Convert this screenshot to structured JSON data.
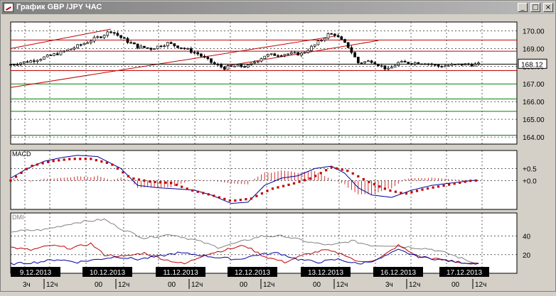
{
  "window": {
    "title": "График GBP /JPY  ЧАС",
    "buttons": {
      "minimize": "_",
      "maximize": "□",
      "close": "×"
    },
    "icon": "chart-icon"
  },
  "chart_data": [
    {
      "type": "candlestick",
      "pair": "GBP/JPY",
      "timeframe": "hourly",
      "ylim": [
        163.6,
        170.5
      ],
      "y_ticks": [
        "170.00",
        "169.00",
        "168.00",
        "167.00",
        "166.00",
        "165.00",
        "164.00"
      ],
      "current_price_label": "168.12",
      "close_path": [
        [
          0,
          168.1
        ],
        [
          6,
          168.3
        ],
        [
          12,
          168.6
        ],
        [
          17,
          168.9
        ],
        [
          22,
          169.3
        ],
        [
          27,
          169.7
        ],
        [
          30,
          170.0
        ],
        [
          34,
          169.5
        ],
        [
          38,
          169.1
        ],
        [
          42,
          169.0
        ],
        [
          47,
          169.3
        ],
        [
          52,
          169.0
        ],
        [
          56,
          168.7
        ],
        [
          61,
          168.1
        ],
        [
          64,
          167.9
        ],
        [
          67,
          168.0
        ],
        [
          71,
          168.0
        ],
        [
          76,
          168.6
        ],
        [
          82,
          168.7
        ],
        [
          87,
          168.7
        ],
        [
          91,
          169.2
        ],
        [
          95,
          169.8
        ],
        [
          97,
          169.8
        ],
        [
          101,
          169.1
        ],
        [
          104,
          168.2
        ],
        [
          108,
          168.3
        ],
        [
          113,
          167.8
        ],
        [
          116,
          168.2
        ],
        [
          120,
          168.2
        ],
        [
          124,
          168.2
        ],
        [
          128,
          168.0
        ],
        [
          135,
          168.1
        ],
        [
          140,
          168.1
        ]
      ],
      "support_lines": [
        169.48,
        168.85,
        167.75,
        167.0,
        166.15,
        165.45,
        164.1
      ],
      "trend_lines": [
        {
          "from": [
            0,
            169.0
          ],
          "to": [
            30,
            170.1
          ]
        },
        {
          "from": [
            0,
            166.8
          ],
          "to": [
            97,
            169.7
          ]
        },
        {
          "from": [
            64,
            168.0
          ],
          "to": [
            110,
            169.45
          ]
        }
      ]
    },
    {
      "type": "line",
      "indicator": "MACD",
      "legend": "MACD",
      "ylim": [
        -1.2,
        1.25
      ],
      "y_ticks": [
        "+0.5",
        "+0.0"
      ],
      "series": [
        {
          "role": "macd",
          "points": [
            [
              0,
              0.1
            ],
            [
              5,
              0.5
            ],
            [
              10,
              0.8
            ],
            [
              15,
              0.95
            ],
            [
              20,
              1.05
            ],
            [
              26,
              1.0
            ],
            [
              33,
              0.5
            ],
            [
              38,
              -0.2
            ],
            [
              44,
              -0.3
            ],
            [
              50,
              -0.35
            ],
            [
              55,
              -0.4
            ],
            [
              60,
              -0.6
            ],
            [
              66,
              -0.95
            ],
            [
              71,
              -0.9
            ],
            [
              76,
              -0.2
            ],
            [
              81,
              0.1
            ],
            [
              86,
              0.2
            ],
            [
              91,
              0.5
            ],
            [
              96,
              0.6
            ],
            [
              100,
              0.3
            ],
            [
              104,
              -0.3
            ],
            [
              108,
              -0.6
            ],
            [
              114,
              -0.7
            ],
            [
              120,
              -0.4
            ],
            [
              126,
              -0.2
            ],
            [
              132,
              -0.1
            ],
            [
              138,
              0.0
            ]
          ]
        },
        {
          "role": "signal",
          "points": [
            [
              0,
              0.0
            ],
            [
              6,
              0.6
            ],
            [
              12,
              0.8
            ],
            [
              18,
              0.9
            ],
            [
              24,
              0.9
            ],
            [
              30,
              0.7
            ],
            [
              36,
              0.1
            ],
            [
              42,
              -0.05
            ],
            [
              48,
              -0.1
            ],
            [
              54,
              -0.4
            ],
            [
              60,
              -0.6
            ],
            [
              66,
              -0.85
            ],
            [
              72,
              -0.75
            ],
            [
              78,
              -0.35
            ],
            [
              84,
              -0.15
            ],
            [
              90,
              0.1
            ],
            [
              96,
              0.55
            ],
            [
              101,
              0.4
            ],
            [
              107,
              -0.05
            ],
            [
              113,
              -0.4
            ],
            [
              118,
              -0.55
            ],
            [
              124,
              -0.35
            ],
            [
              130,
              -0.2
            ],
            [
              138,
              0.0
            ]
          ]
        }
      ]
    },
    {
      "type": "line",
      "indicator": "DMI",
      "legend": "DMI",
      "ylim": [
        0,
        65
      ],
      "y_ticks": [
        "40",
        "20"
      ],
      "series": [
        {
          "role": "adx",
          "color": "#808080",
          "points": [
            [
              0,
              45
            ],
            [
              10,
              47
            ],
            [
              20,
              55
            ],
            [
              28,
              58
            ],
            [
              33,
              48
            ],
            [
              40,
              38
            ],
            [
              48,
              42
            ],
            [
              56,
              35
            ],
            [
              62,
              28
            ],
            [
              68,
              33
            ],
            [
              75,
              40
            ],
            [
              82,
              40
            ],
            [
              90,
              33
            ],
            [
              96,
              30
            ],
            [
              102,
              35
            ],
            [
              108,
              30
            ],
            [
              114,
              30
            ],
            [
              120,
              28
            ],
            [
              126,
              26
            ],
            [
              132,
              20
            ],
            [
              138,
              12
            ]
          ]
        },
        {
          "role": "plus-di",
          "color": "#c00000",
          "points": [
            [
              0,
              28
            ],
            [
              6,
              25
            ],
            [
              12,
              30
            ],
            [
              18,
              27
            ],
            [
              24,
              32
            ],
            [
              28,
              20
            ],
            [
              34,
              18
            ],
            [
              40,
              22
            ],
            [
              46,
              15
            ],
            [
              52,
              10
            ],
            [
              58,
              20
            ],
            [
              64,
              25
            ],
            [
              70,
              30
            ],
            [
              76,
              18
            ],
            [
              82,
              12
            ],
            [
              88,
              20
            ],
            [
              94,
              25
            ],
            [
              100,
              20
            ],
            [
              104,
              12
            ],
            [
              110,
              15
            ],
            [
              116,
              30
            ],
            [
              122,
              18
            ],
            [
              128,
              15
            ],
            [
              134,
              12
            ],
            [
              138,
              10
            ]
          ]
        },
        {
          "role": "minus-di",
          "color": "#0000a0",
          "points": [
            [
              0,
              10
            ],
            [
              8,
              12
            ],
            [
              14,
              15
            ],
            [
              20,
              12
            ],
            [
              26,
              15
            ],
            [
              32,
              18
            ],
            [
              38,
              15
            ],
            [
              44,
              18
            ],
            [
              50,
              22
            ],
            [
              56,
              20
            ],
            [
              62,
              17
            ],
            [
              68,
              15
            ],
            [
              74,
              20
            ],
            [
              80,
              22
            ],
            [
              86,
              15
            ],
            [
              92,
              12
            ],
            [
              98,
              15
            ],
            [
              104,
              10
            ],
            [
              110,
              15
            ],
            [
              116,
              25
            ],
            [
              122,
              18
            ],
            [
              128,
              15
            ],
            [
              134,
              12
            ],
            [
              138,
              11
            ]
          ]
        }
      ]
    }
  ],
  "x_axis": {
    "dates": [
      "9.12.2013",
      "10.12.2013",
      "11.12.2013",
      "12.12.2013",
      "13.12.2013",
      "16.12.2013",
      "17.12.2013"
    ],
    "hour_labels": [
      [
        "3ч",
        "12ч"
      ],
      [
        "00",
        "12ч"
      ],
      [
        "00",
        "12ч"
      ],
      [
        "00",
        "12ч"
      ],
      [
        "00",
        "12ч"
      ],
      [
        "3ч",
        "12ч"
      ],
      [
        "00",
        "12ч"
      ]
    ]
  }
}
